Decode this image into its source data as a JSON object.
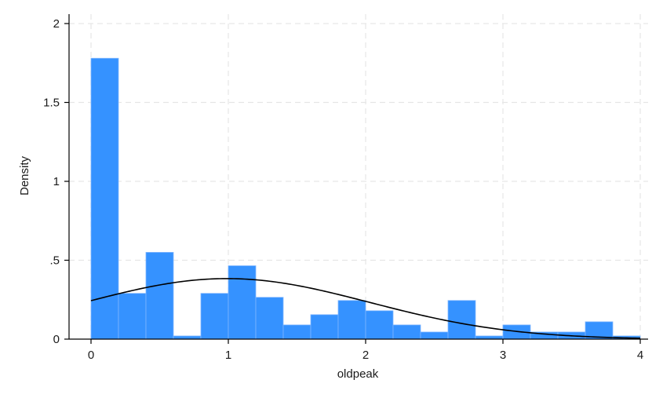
{
  "chart_data": {
    "type": "bar",
    "subtype": "histogram",
    "title": "",
    "xlabel": "oldpeak",
    "ylabel": "Density",
    "xlim": [
      0,
      4
    ],
    "ylim": [
      0,
      2
    ],
    "x_ticks": [
      0,
      1,
      2,
      3,
      4
    ],
    "x_tick_labels": [
      "0",
      "1",
      "2",
      "3",
      "4"
    ],
    "y_ticks": [
      0,
      0.5,
      1,
      1.5,
      2
    ],
    "y_tick_labels": [
      "0",
      ".5",
      "1",
      "1.5",
      "2"
    ],
    "grid": true,
    "bar_color": "#3592ff",
    "bin_width": 0.2,
    "bin_starts": [
      0,
      0.2,
      0.4,
      0.6,
      0.8,
      1.0,
      1.2,
      1.4,
      1.6,
      1.8,
      2.0,
      2.2,
      2.4,
      2.6,
      2.8,
      3.0,
      3.2,
      3.4,
      3.6,
      3.8
    ],
    "values": [
      1.78,
      0.29,
      0.55,
      0.02,
      0.29,
      0.465,
      0.265,
      0.09,
      0.155,
      0.245,
      0.18,
      0.09,
      0.045,
      0.245,
      0.02,
      0.09,
      0.045,
      0.045,
      0.11,
      0.02
    ],
    "overlay": {
      "type": "normal-density",
      "mean": 0.99,
      "sd": 1.04,
      "color": "#000000"
    }
  }
}
